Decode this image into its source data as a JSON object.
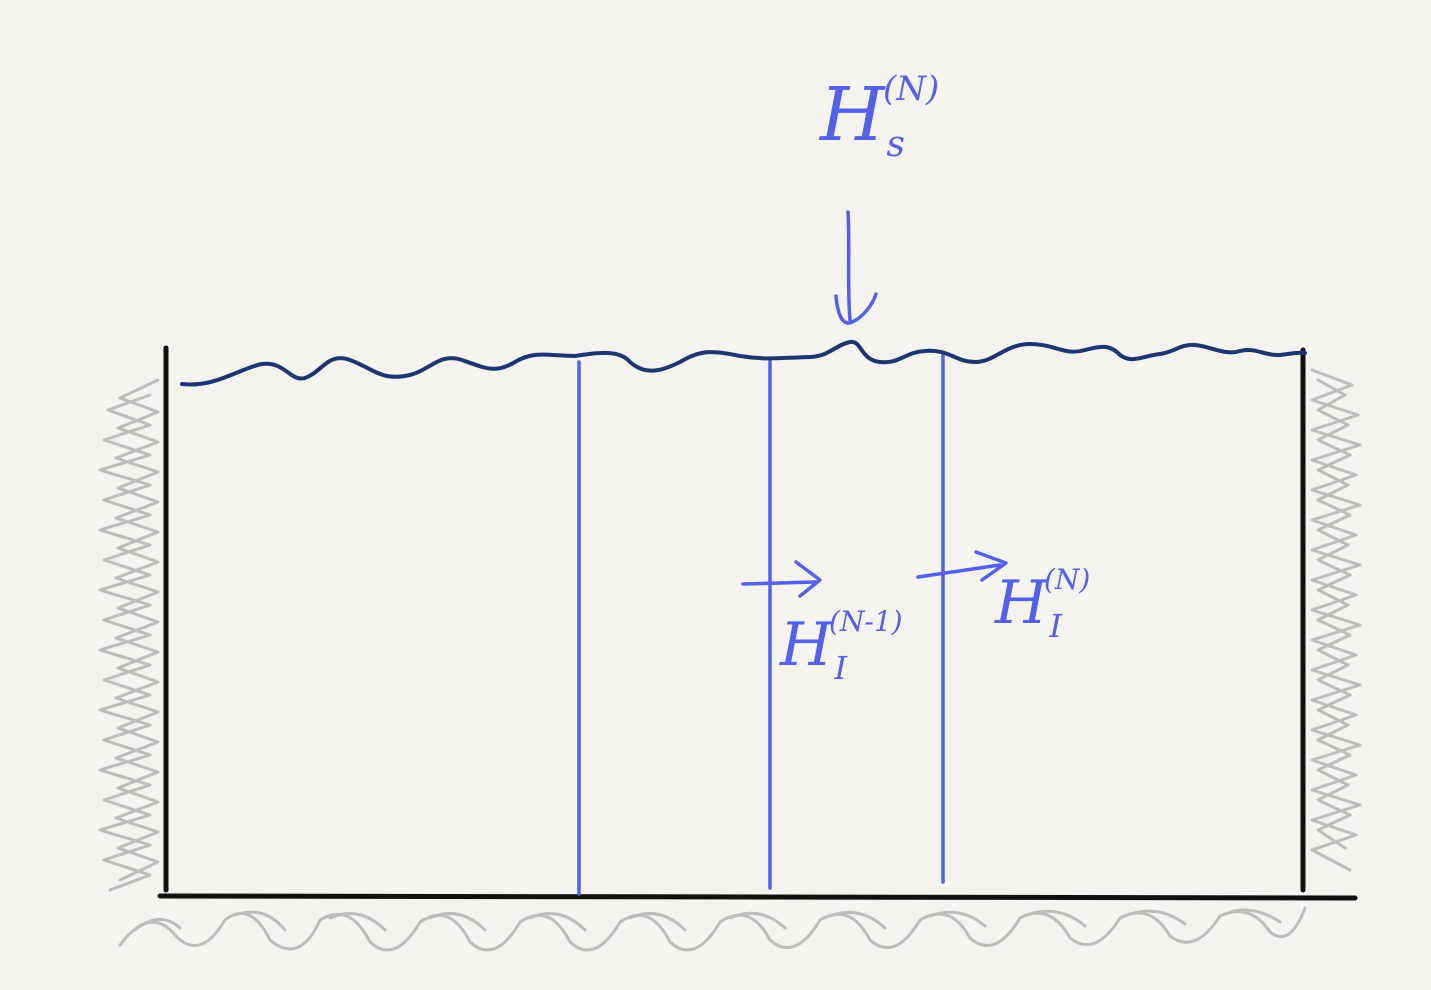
{
  "colors": {
    "ink_blue": "#5560e8",
    "surface_navy": "#1f3570",
    "wall_black": "#111111",
    "hatch_gray": "#b8b8b8",
    "paper": "#f4f3f0"
  },
  "labels": {
    "surface_flux": {
      "base": "H",
      "sub": "s",
      "sup": "(N)"
    },
    "interface_prev": {
      "base": "H",
      "sub": "I",
      "sup": "(N-1)"
    },
    "interface_curr": {
      "base": "H",
      "sub": "I",
      "sup": "(N)"
    }
  }
}
